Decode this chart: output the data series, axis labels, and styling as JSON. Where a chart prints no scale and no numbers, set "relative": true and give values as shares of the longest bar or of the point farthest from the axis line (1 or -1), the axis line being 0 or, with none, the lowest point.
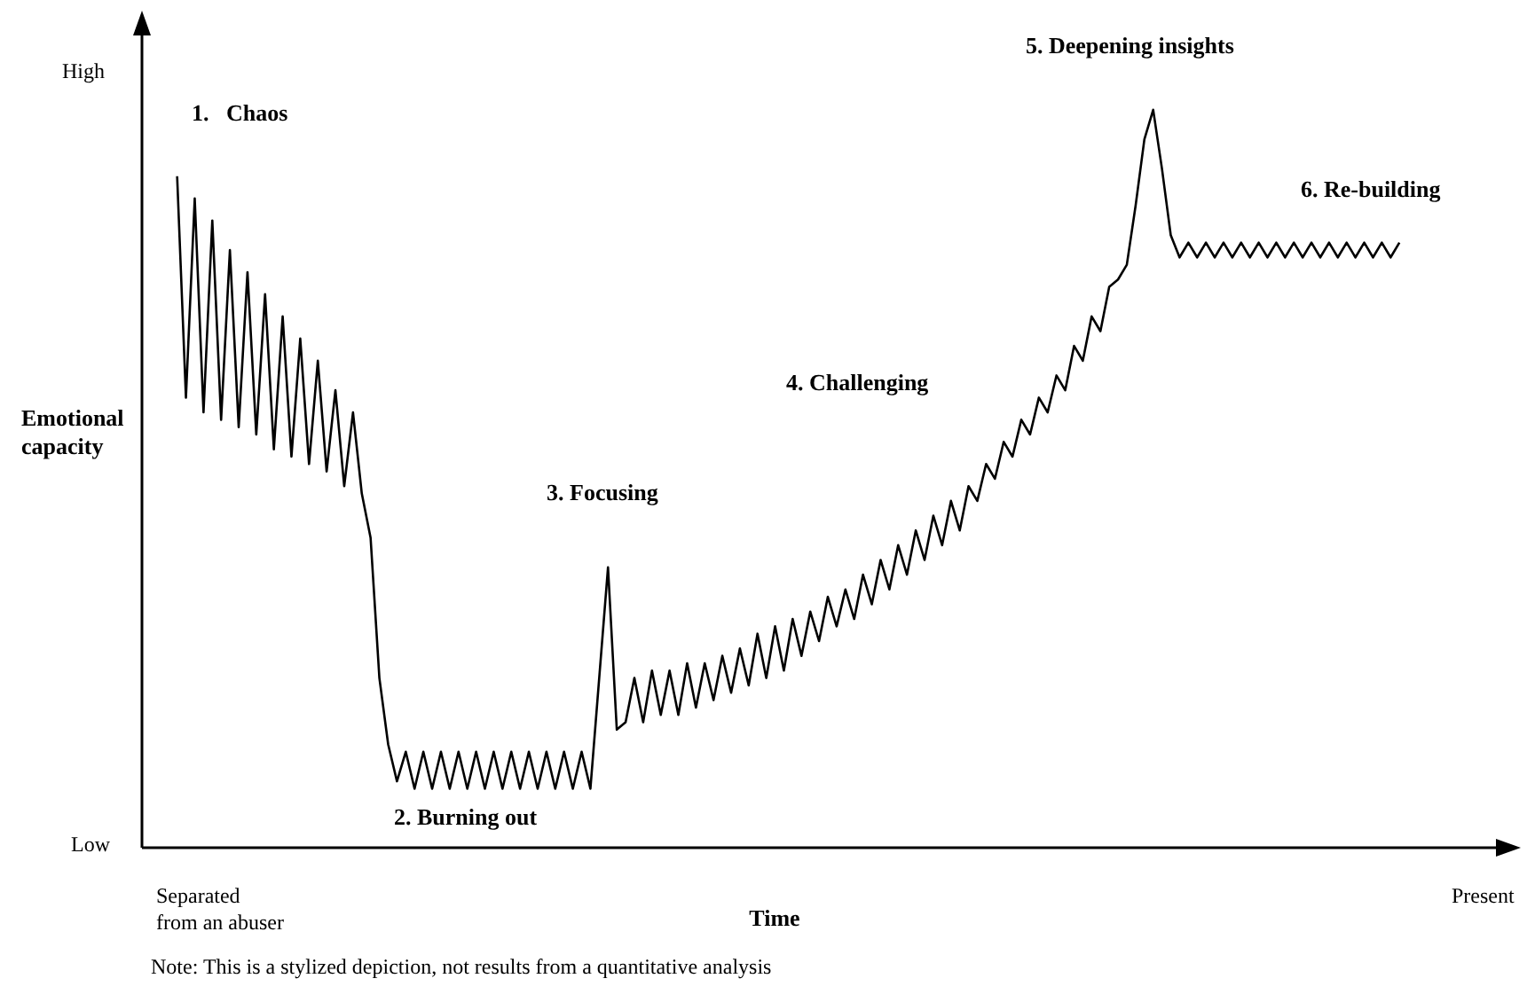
{
  "chart_data": {
    "type": "line",
    "relative": true,
    "marker": "none",
    "xlabel": "Time",
    "ylabel": "Emotional capacity",
    "annotations": [
      "High",
      "Low",
      "Separated\nfrom an abuser",
      "Present",
      "1.   Chaos",
      "2. Burning out",
      "3. Focusing",
      "4. Challenging",
      "5. Deepening insights",
      "6. Re-building",
      "Note: This is a stylized depiction, not results from a quantitative analysis"
    ],
    "categories": [
      null,
      null,
      null,
      null,
      null,
      null,
      null,
      null,
      null,
      null,
      null,
      null,
      null,
      null,
      null,
      null,
      null,
      null,
      null,
      null,
      null,
      null,
      null,
      null,
      null,
      null,
      null,
      null,
      null,
      null,
      null,
      null,
      null,
      null,
      null,
      null,
      null,
      null,
      null,
      null,
      null,
      null,
      null,
      null,
      null,
      null,
      null,
      null,
      null,
      null,
      null,
      null,
      null,
      null,
      null,
      null,
      null,
      null,
      null,
      null,
      null,
      null,
      null,
      null,
      null,
      null,
      null,
      null,
      null,
      null,
      null,
      null,
      null,
      null,
      null,
      null,
      null,
      null,
      null,
      null,
      null,
      null,
      null,
      null,
      null,
      null,
      null,
      null,
      null,
      null,
      null,
      null,
      null,
      null,
      null,
      null,
      null,
      null,
      null,
      null,
      null,
      null,
      null,
      null,
      null,
      null,
      null,
      null,
      null,
      null,
      null,
      null,
      null,
      null,
      null,
      null,
      null,
      null,
      null,
      null,
      null,
      null,
      null,
      null,
      null,
      null,
      null,
      null,
      null,
      null,
      null,
      null,
      null,
      null,
      null,
      null,
      null,
      null,
      null,
      null,
      null,
      null,
      null,
      null,
      null,
      null,
      null,
      null,
      null,
      null,
      null,
      null,
      null,
      null,
      null,
      null,
      null
    ],
    "series": [
      {
        "color": "#000000",
        "values": [
          null,
          null,
          null,
          null,
          0.91,
          0.61,
          0.88,
          0.59,
          0.85,
          0.58,
          0.81,
          0.57,
          0.78,
          0.56,
          0.75,
          0.54,
          0.72,
          0.53,
          0.69,
          0.52,
          0.66,
          0.51,
          0.62,
          0.49,
          0.59,
          0.48,
          0.42,
          0.23,
          0.14,
          0.09,
          0.13,
          0.08,
          0.13,
          0.08,
          0.13,
          0.08,
          0.13,
          0.08,
          0.13,
          0.08,
          0.13,
          0.08,
          0.13,
          0.08,
          0.13,
          0.08,
          0.13,
          0.08,
          0.13,
          0.08,
          0.13,
          0.08,
          0.23,
          0.38,
          0.16,
          0.17,
          0.23,
          0.17,
          0.24,
          0.18,
          0.24,
          0.18,
          0.25,
          0.19,
          0.25,
          0.2,
          0.26,
          0.21,
          0.27,
          0.22,
          0.29,
          0.23,
          0.3,
          0.24,
          0.31,
          0.26,
          0.32,
          0.28,
          0.34,
          0.3,
          0.35,
          0.31,
          0.37,
          0.33,
          0.39,
          0.35,
          0.41,
          0.37,
          0.43,
          0.39,
          0.45,
          0.41,
          0.47,
          0.43,
          0.49,
          0.47,
          0.52,
          0.5,
          0.55,
          0.53,
          0.58,
          0.56,
          0.61,
          0.59,
          0.64,
          0.62,
          0.68,
          0.66,
          0.72,
          0.7,
          0.76,
          0.77,
          0.79,
          0.87,
          0.96,
          1,
          0.92,
          0.83,
          0.8,
          0.82,
          0.8,
          0.82,
          0.8,
          0.82,
          0.8,
          0.82,
          0.8,
          0.82,
          0.8,
          0.82,
          0.8,
          0.82,
          0.8,
          0.82,
          0.8,
          0.82,
          0.8,
          0.82,
          0.8,
          0.82,
          0.8,
          0.82,
          0.8,
          0.82,
          null,
          null,
          null,
          null,
          null,
          null,
          null,
          null,
          null,
          null,
          null,
          null,
          null
        ]
      }
    ]
  }
}
